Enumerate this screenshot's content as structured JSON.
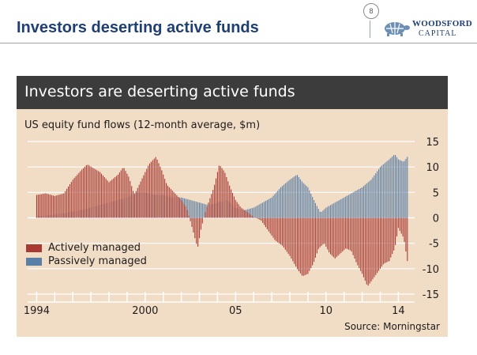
{
  "slide": {
    "title": "Investors deserting active funds",
    "page_number": "8",
    "logo_line1": "WOODSFORD",
    "logo_line2": "CAPITAL"
  },
  "chart_data": {
    "type": "bar",
    "title": "Investors are deserting active funds",
    "subtitle": "US equity fund flows (12-month average, $m)",
    "source": "Source: Morningstar",
    "ylim": [
      -15,
      15
    ],
    "y_ticks": [
      "15",
      "10",
      "5",
      "0",
      "-5",
      "-10",
      "-15"
    ],
    "y_tick_values": [
      15,
      10,
      5,
      0,
      -5,
      -10,
      -15
    ],
    "x_range": [
      1993.5,
      2014.9
    ],
    "x_tick_labels": [
      "1994",
      "2000",
      "05",
      "10",
      "14"
    ],
    "x_tick_values": [
      1994,
      2000,
      2005,
      2010,
      2014
    ],
    "legend_position": "left",
    "grid": true,
    "series": [
      {
        "name": "Actively managed",
        "color": "#a83a32",
        "points": [
          [
            1994.0,
            4.5
          ],
          [
            1994.5,
            4.8
          ],
          [
            1995.0,
            4.3
          ],
          [
            1995.5,
            4.8
          ],
          [
            1996.0,
            7.5
          ],
          [
            1996.5,
            9.5
          ],
          [
            1996.8,
            10.5
          ],
          [
            1997.5,
            9.0
          ],
          [
            1998.0,
            7.0
          ],
          [
            1998.5,
            8.5
          ],
          [
            1998.8,
            10.0
          ],
          [
            1999.1,
            8.0
          ],
          [
            1999.4,
            4.5
          ],
          [
            1999.8,
            7.5
          ],
          [
            2000.2,
            10.5
          ],
          [
            2000.6,
            12.0
          ],
          [
            2000.9,
            9.5
          ],
          [
            2001.2,
            6.5
          ],
          [
            2001.6,
            5.0
          ],
          [
            2002.0,
            3.5
          ],
          [
            2002.3,
            2.0
          ],
          [
            2002.6,
            -2.0
          ],
          [
            2002.9,
            -6.0
          ],
          [
            2003.1,
            -2.0
          ],
          [
            2003.4,
            2.0
          ],
          [
            2003.8,
            6.0
          ],
          [
            2004.1,
            10.5
          ],
          [
            2004.4,
            9.0
          ],
          [
            2004.7,
            6.0
          ],
          [
            2005.0,
            3.5
          ],
          [
            2005.3,
            2.0
          ],
          [
            2005.7,
            1.0
          ],
          [
            2006.0,
            0.2
          ],
          [
            2006.4,
            -0.5
          ],
          [
            2006.8,
            -2.5
          ],
          [
            2007.2,
            -4.5
          ],
          [
            2007.6,
            -5.5
          ],
          [
            2008.0,
            -7.5
          ],
          [
            2008.4,
            -10.0
          ],
          [
            2008.7,
            -11.5
          ],
          [
            2009.0,
            -11.0
          ],
          [
            2009.3,
            -9.0
          ],
          [
            2009.6,
            -6.0
          ],
          [
            2009.9,
            -5.0
          ],
          [
            2010.2,
            -7.0
          ],
          [
            2010.5,
            -8.0
          ],
          [
            2010.8,
            -7.0
          ],
          [
            2011.1,
            -6.0
          ],
          [
            2011.4,
            -6.5
          ],
          [
            2011.7,
            -9.0
          ],
          [
            2012.0,
            -11.0
          ],
          [
            2012.3,
            -13.5
          ],
          [
            2012.6,
            -12.0
          ],
          [
            2012.9,
            -10.5
          ],
          [
            2013.2,
            -9.0
          ],
          [
            2013.5,
            -8.5
          ],
          [
            2013.8,
            -6.0
          ],
          [
            2014.0,
            -2.0
          ],
          [
            2014.3,
            -4.0
          ],
          [
            2014.5,
            -8.5
          ]
        ]
      },
      {
        "name": "Passively managed",
        "color": "#5a7fa6",
        "points": [
          [
            1994.0,
            0.3
          ],
          [
            1995.0,
            0.6
          ],
          [
            1996.0,
            1.2
          ],
          [
            1997.0,
            2.0
          ],
          [
            1998.0,
            3.0
          ],
          [
            1999.0,
            4.0
          ],
          [
            1999.5,
            5.0
          ],
          [
            2000.0,
            5.0
          ],
          [
            2000.5,
            4.5
          ],
          [
            2001.0,
            4.5
          ],
          [
            2001.5,
            4.0
          ],
          [
            2002.0,
            4.0
          ],
          [
            2002.5,
            3.5
          ],
          [
            2003.0,
            3.0
          ],
          [
            2003.5,
            2.5
          ],
          [
            2004.0,
            3.0
          ],
          [
            2004.5,
            3.5
          ],
          [
            2005.0,
            2.0
          ],
          [
            2005.5,
            1.5
          ],
          [
            2006.0,
            2.0
          ],
          [
            2006.5,
            3.0
          ],
          [
            2007.0,
            4.0
          ],
          [
            2007.5,
            6.0
          ],
          [
            2008.0,
            7.5
          ],
          [
            2008.4,
            8.5
          ],
          [
            2008.7,
            7.0
          ],
          [
            2009.0,
            6.0
          ],
          [
            2009.4,
            3.0
          ],
          [
            2009.7,
            1.0
          ],
          [
            2010.0,
            2.0
          ],
          [
            2010.5,
            3.0
          ],
          [
            2011.0,
            4.0
          ],
          [
            2011.5,
            5.0
          ],
          [
            2012.0,
            6.0
          ],
          [
            2012.5,
            7.5
          ],
          [
            2013.0,
            10.0
          ],
          [
            2013.5,
            11.5
          ],
          [
            2013.8,
            12.5
          ],
          [
            2014.0,
            11.5
          ],
          [
            2014.3,
            11.0
          ],
          [
            2014.5,
            12.0
          ]
        ]
      }
    ]
  }
}
